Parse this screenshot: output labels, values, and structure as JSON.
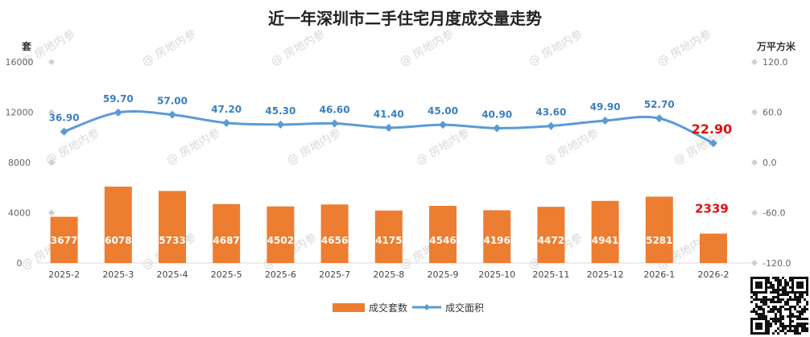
{
  "chart_data": {
    "type": "bar",
    "title": "近一年深圳市二手住宅月度成交量走势",
    "left_unit": "套",
    "right_unit": "万平方米",
    "categories": [
      "2025-2",
      "2025-3",
      "2025-4",
      "2025-5",
      "2025-6",
      "2025-7",
      "2025-8",
      "2025-9",
      "2025-10",
      "2025-11",
      "2025-12",
      "2026-1",
      "2026-2"
    ],
    "left_ticks": [
      "0",
      "4000",
      "8000",
      "12000",
      "16000"
    ],
    "right_ticks": [
      "-120.0",
      "-60.0",
      "0.0",
      "60.0",
      "120.0"
    ],
    "ylim_left": [
      0,
      16000
    ],
    "ylim_right": [
      -120,
      120
    ],
    "series": [
      {
        "name": "成交套数",
        "type": "bar",
        "axis": "left",
        "color": "#ed7d31",
        "values": [
          3677,
          6078,
          5733,
          4687,
          4502,
          4656,
          4175,
          4546,
          4196,
          4472,
          4941,
          5281,
          2339
        ],
        "labels": [
          "3677",
          "6078",
          "5733",
          "4687",
          "4502",
          "4656",
          "4175",
          "4546",
          "4196",
          "4472",
          "4941",
          "5281",
          "2339"
        ]
      },
      {
        "name": "成交面积",
        "type": "line",
        "axis": "right",
        "color": "#5b9bd5",
        "values": [
          36.9,
          59.7,
          57.0,
          47.2,
          45.3,
          46.6,
          41.4,
          45.0,
          40.9,
          43.6,
          49.9,
          52.7,
          22.9
        ],
        "labels": [
          "36.90",
          "59.70",
          "57.00",
          "47.20",
          "45.30",
          "46.60",
          "41.40",
          "45.00",
          "40.90",
          "43.60",
          "49.90",
          "52.70",
          "22.90"
        ]
      }
    ],
    "highlight_color": "#e01010",
    "legend_position": "bottom-center",
    "grid": false
  },
  "watermark": "@ 房地内参"
}
